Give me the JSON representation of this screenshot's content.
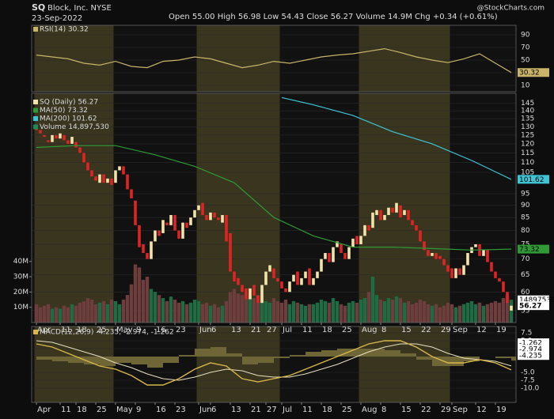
{
  "header": {
    "symbol": "SQ",
    "name": "Block, Inc. NYSE",
    "date": "23-Sep-2022",
    "quote": "Open 55.00   High 56.98   Low 54.43   Close 56.27   Volume 14.9M   Chg +0.34 (+0.61%)",
    "credit": "@StockCharts.com"
  },
  "chart_data": [
    {
      "type": "line",
      "legend": "RSI(14) 30.32",
      "color": "#c9b46a",
      "x": [
        0,
        4,
        8,
        12,
        16,
        20,
        24,
        28,
        32,
        36,
        40,
        44,
        48,
        52,
        56,
        60,
        64,
        68,
        72,
        76,
        80,
        84,
        88,
        92,
        96,
        100,
        104,
        108,
        112,
        116,
        120
      ],
      "values": [
        58,
        55,
        52,
        45,
        42,
        48,
        40,
        38,
        48,
        50,
        55,
        52,
        45,
        38,
        42,
        48,
        45,
        50,
        55,
        58,
        60,
        64,
        68,
        62,
        55,
        50,
        46,
        52,
        60,
        45,
        30.32
      ],
      "ylim": [
        0,
        105
      ],
      "yticks": [
        90,
        70,
        50,
        30,
        10
      ],
      "last_label": "30.32"
    },
    {
      "type": "candlestick",
      "legend": "SQ (Daily) 56.27",
      "last_label": "56.27",
      "log": true,
      "grid": true,
      "up_color": "#f2e3a8",
      "down_color": "#e02424",
      "open": [
        130,
        128,
        125,
        122,
        121,
        125,
        123,
        125,
        122,
        120,
        121,
        118,
        115,
        110,
        106,
        103,
        100,
        104,
        100,
        102,
        100,
        106,
        108,
        104,
        97,
        92,
        82,
        75,
        72,
        70,
        76,
        80,
        79,
        83,
        82,
        86,
        80,
        77,
        83,
        82,
        85,
        88,
        91,
        86,
        84,
        87,
        85,
        83,
        86,
        79,
        66,
        64,
        62,
        61,
        58,
        62,
        59,
        57,
        62,
        66,
        67,
        64,
        63,
        61,
        60,
        63,
        66,
        62,
        64,
        67,
        62,
        64,
        66,
        70,
        72,
        69,
        74,
        75,
        72,
        70,
        74,
        78,
        75,
        78,
        82,
        81,
        86,
        88,
        84,
        86,
        89,
        87,
        90,
        86,
        88,
        84,
        82,
        80,
        76,
        73,
        71,
        72,
        71,
        70,
        68,
        67,
        64,
        67,
        65,
        68,
        72,
        74,
        75,
        71,
        73,
        69,
        66,
        64,
        63,
        60,
        55.0
      ],
      "close": [
        128,
        126,
        124,
        121,
        125,
        123,
        126,
        122,
        120,
        124,
        118,
        115,
        110,
        106,
        103,
        101,
        104,
        100,
        102,
        99,
        106,
        108,
        104,
        97,
        93,
        82,
        74,
        72,
        70,
        76,
        80,
        78,
        84,
        82,
        86,
        80,
        77,
        83,
        81,
        85,
        88,
        90,
        86,
        84,
        87,
        85,
        84,
        86,
        76,
        66,
        63,
        62,
        60,
        58,
        61,
        59,
        57,
        62,
        66,
        68,
        64,
        63,
        61,
        60,
        63,
        65,
        62,
        64,
        66,
        62,
        64,
        66,
        70,
        72,
        69,
        74,
        76,
        72,
        70,
        74,
        77,
        75,
        78,
        82,
        80,
        87,
        88,
        84,
        86,
        89,
        87,
        91,
        85,
        88,
        84,
        82,
        80,
        76,
        73,
        71,
        72,
        70,
        70,
        68,
        66,
        64,
        67,
        65,
        68,
        72,
        74,
        75,
        71,
        73,
        69,
        66,
        64,
        63,
        60,
        57,
        56.27
      ],
      "series": [
        {
          "name": "MA(50) 73.32",
          "color": "#2f9a36",
          "x": [
            0,
            10,
            20,
            30,
            40,
            50,
            60,
            70,
            80,
            90,
            100,
            110,
            120
          ],
          "values": [
            118,
            119,
            119,
            114,
            108,
            100,
            85,
            78,
            74,
            74,
            73.5,
            73,
            73.32
          ],
          "last_label": "73.32"
        },
        {
          "name": "MA(200) 101.62",
          "color": "#3fc4d4",
          "x": [
            62,
            70,
            80,
            90,
            100,
            110,
            120
          ],
          "values": [
            149,
            144,
            137,
            127,
            120,
            111,
            101.62
          ],
          "last_label": "101.62"
        }
      ],
      "volume": {
        "name": "Volume 14,897,530",
        "color": "#1f8a55",
        "up_color": "#1f6b43",
        "down_color": "#6e3d3d",
        "last_label": "14897530",
        "ylim": [
          0,
          150
        ],
        "yticks": [
          {
            "value": 10,
            "label": "10M"
          },
          {
            "value": 20,
            "label": "20M"
          },
          {
            "value": 30,
            "label": "30M"
          },
          {
            "value": 40,
            "label": "40M"
          }
        ],
        "values": [
          12,
          10,
          11,
          12,
          9,
          10,
          9,
          11,
          10,
          12,
          11,
          13,
          14,
          16,
          15,
          12,
          13,
          14,
          12,
          15,
          14,
          12,
          15,
          18,
          25,
          38,
          36,
          28,
          30,
          22,
          20,
          18,
          16,
          14,
          17,
          15,
          13,
          14,
          12,
          13,
          15,
          14,
          12,
          13,
          11,
          12,
          10,
          11,
          14,
          20,
          22,
          19,
          18,
          20,
          17,
          16,
          18,
          15,
          14,
          13,
          16,
          14,
          13,
          15,
          12,
          14,
          13,
          12,
          11,
          12,
          12,
          13,
          15,
          14,
          13,
          16,
          14,
          12,
          11,
          13,
          14,
          13,
          15,
          16,
          20,
          30,
          18,
          15,
          14,
          16,
          15,
          17,
          16,
          13,
          14,
          12,
          13,
          15,
          14,
          12,
          11,
          12,
          10,
          11,
          13,
          12,
          10,
          11,
          12,
          13,
          14,
          12,
          13,
          11,
          12,
          13,
          14,
          13,
          16,
          18,
          14.89753
        ]
      },
      "ylim": [
        52,
        152
      ],
      "yticks": [
        145,
        140,
        135,
        130,
        125,
        120,
        115,
        110,
        105,
        95,
        90,
        85,
        80,
        75,
        70,
        65,
        60,
        55
      ],
      "xlim": [
        -1.2,
        121.2
      ],
      "xticks": [
        {
          "value": 0,
          "label": "Apr"
        },
        {
          "value": 6,
          "label": "11"
        },
        {
          "value": 10,
          "label": "18"
        },
        {
          "value": 15,
          "label": "25"
        },
        {
          "value": 20,
          "label": "May"
        },
        {
          "value": 25,
          "label": "9"
        },
        {
          "value": 30,
          "label": "16"
        },
        {
          "value": 35,
          "label": "23"
        },
        {
          "value": 41,
          "label": "Jun"
        },
        {
          "value": 44,
          "label": "6"
        },
        {
          "value": 49,
          "label": "13"
        },
        {
          "value": 54,
          "label": "21"
        },
        {
          "value": 58,
          "label": "27"
        },
        {
          "value": 62,
          "label": "Jul"
        },
        {
          "value": 67,
          "label": "11"
        },
        {
          "value": 72,
          "label": "18"
        },
        {
          "value": 77,
          "label": "25"
        },
        {
          "value": 82,
          "label": "Aug"
        },
        {
          "value": 87,
          "label": "8"
        },
        {
          "value": 92,
          "label": "15"
        },
        {
          "value": 97,
          "label": "22"
        },
        {
          "value": 102,
          "label": "29"
        },
        {
          "value": 105,
          "label": "Sep"
        },
        {
          "value": 111,
          "label": "12"
        },
        {
          "value": 116,
          "label": "19"
        }
      ]
    },
    {
      "type": "macd",
      "legend": "MACD(12,26,9) -4.235, -2.974, -1.262",
      "x": [
        0,
        4,
        8,
        12,
        16,
        20,
        24,
        28,
        32,
        36,
        40,
        44,
        48,
        52,
        56,
        60,
        64,
        68,
        72,
        76,
        80,
        84,
        88,
        92,
        96,
        100,
        104,
        108,
        112,
        116,
        120
      ],
      "macd": {
        "color": "#d9b84a",
        "last_label": "-4.235",
        "values": [
          4,
          3,
          1,
          -1,
          -3,
          -4,
          -6,
          -9,
          -9,
          -7,
          -4,
          -2,
          -3,
          -7,
          -8,
          -7,
          -6,
          -4,
          -2,
          0,
          2,
          4,
          5,
          5,
          3,
          0,
          -2,
          -2,
          -1,
          -2,
          -4.235
        ]
      },
      "signal": {
        "color": "#e8e0c0",
        "last_label": "-2.974",
        "values": [
          5,
          4.5,
          3,
          1.5,
          0,
          -2,
          -3.5,
          -5.5,
          -7,
          -7.5,
          -6.5,
          -5,
          -4,
          -4.5,
          -6,
          -6.5,
          -6.5,
          -5.5,
          -4,
          -2.5,
          -0.5,
          1.5,
          3,
          4,
          4,
          3,
          1,
          -0.5,
          -1,
          -1.5,
          -2.974
        ]
      },
      "histogram": {
        "color": "#6f6637",
        "last_label": "-1.262",
        "values": [
          -1,
          -1.5,
          -2,
          -2.5,
          -3,
          -2,
          -2.5,
          -3.5,
          -2,
          0.5,
          2.5,
          3,
          1,
          -2.5,
          -2,
          -0.5,
          0.5,
          1.5,
          2,
          2.5,
          2.5,
          2.5,
          2,
          1,
          -1,
          -3,
          -3,
          -1.5,
          0,
          -0.5,
          -1.262
        ]
      },
      "ylim": [
        -14.5,
        9.5
      ],
      "yticks": [
        7.5,
        {
          "value": 5,
          "label": "5.0"
        },
        2.5,
        {
          "value": -5,
          "label": "-5.0"
        },
        -7.5,
        {
          "value": -10,
          "label": "-10.0"
        }
      ]
    }
  ]
}
